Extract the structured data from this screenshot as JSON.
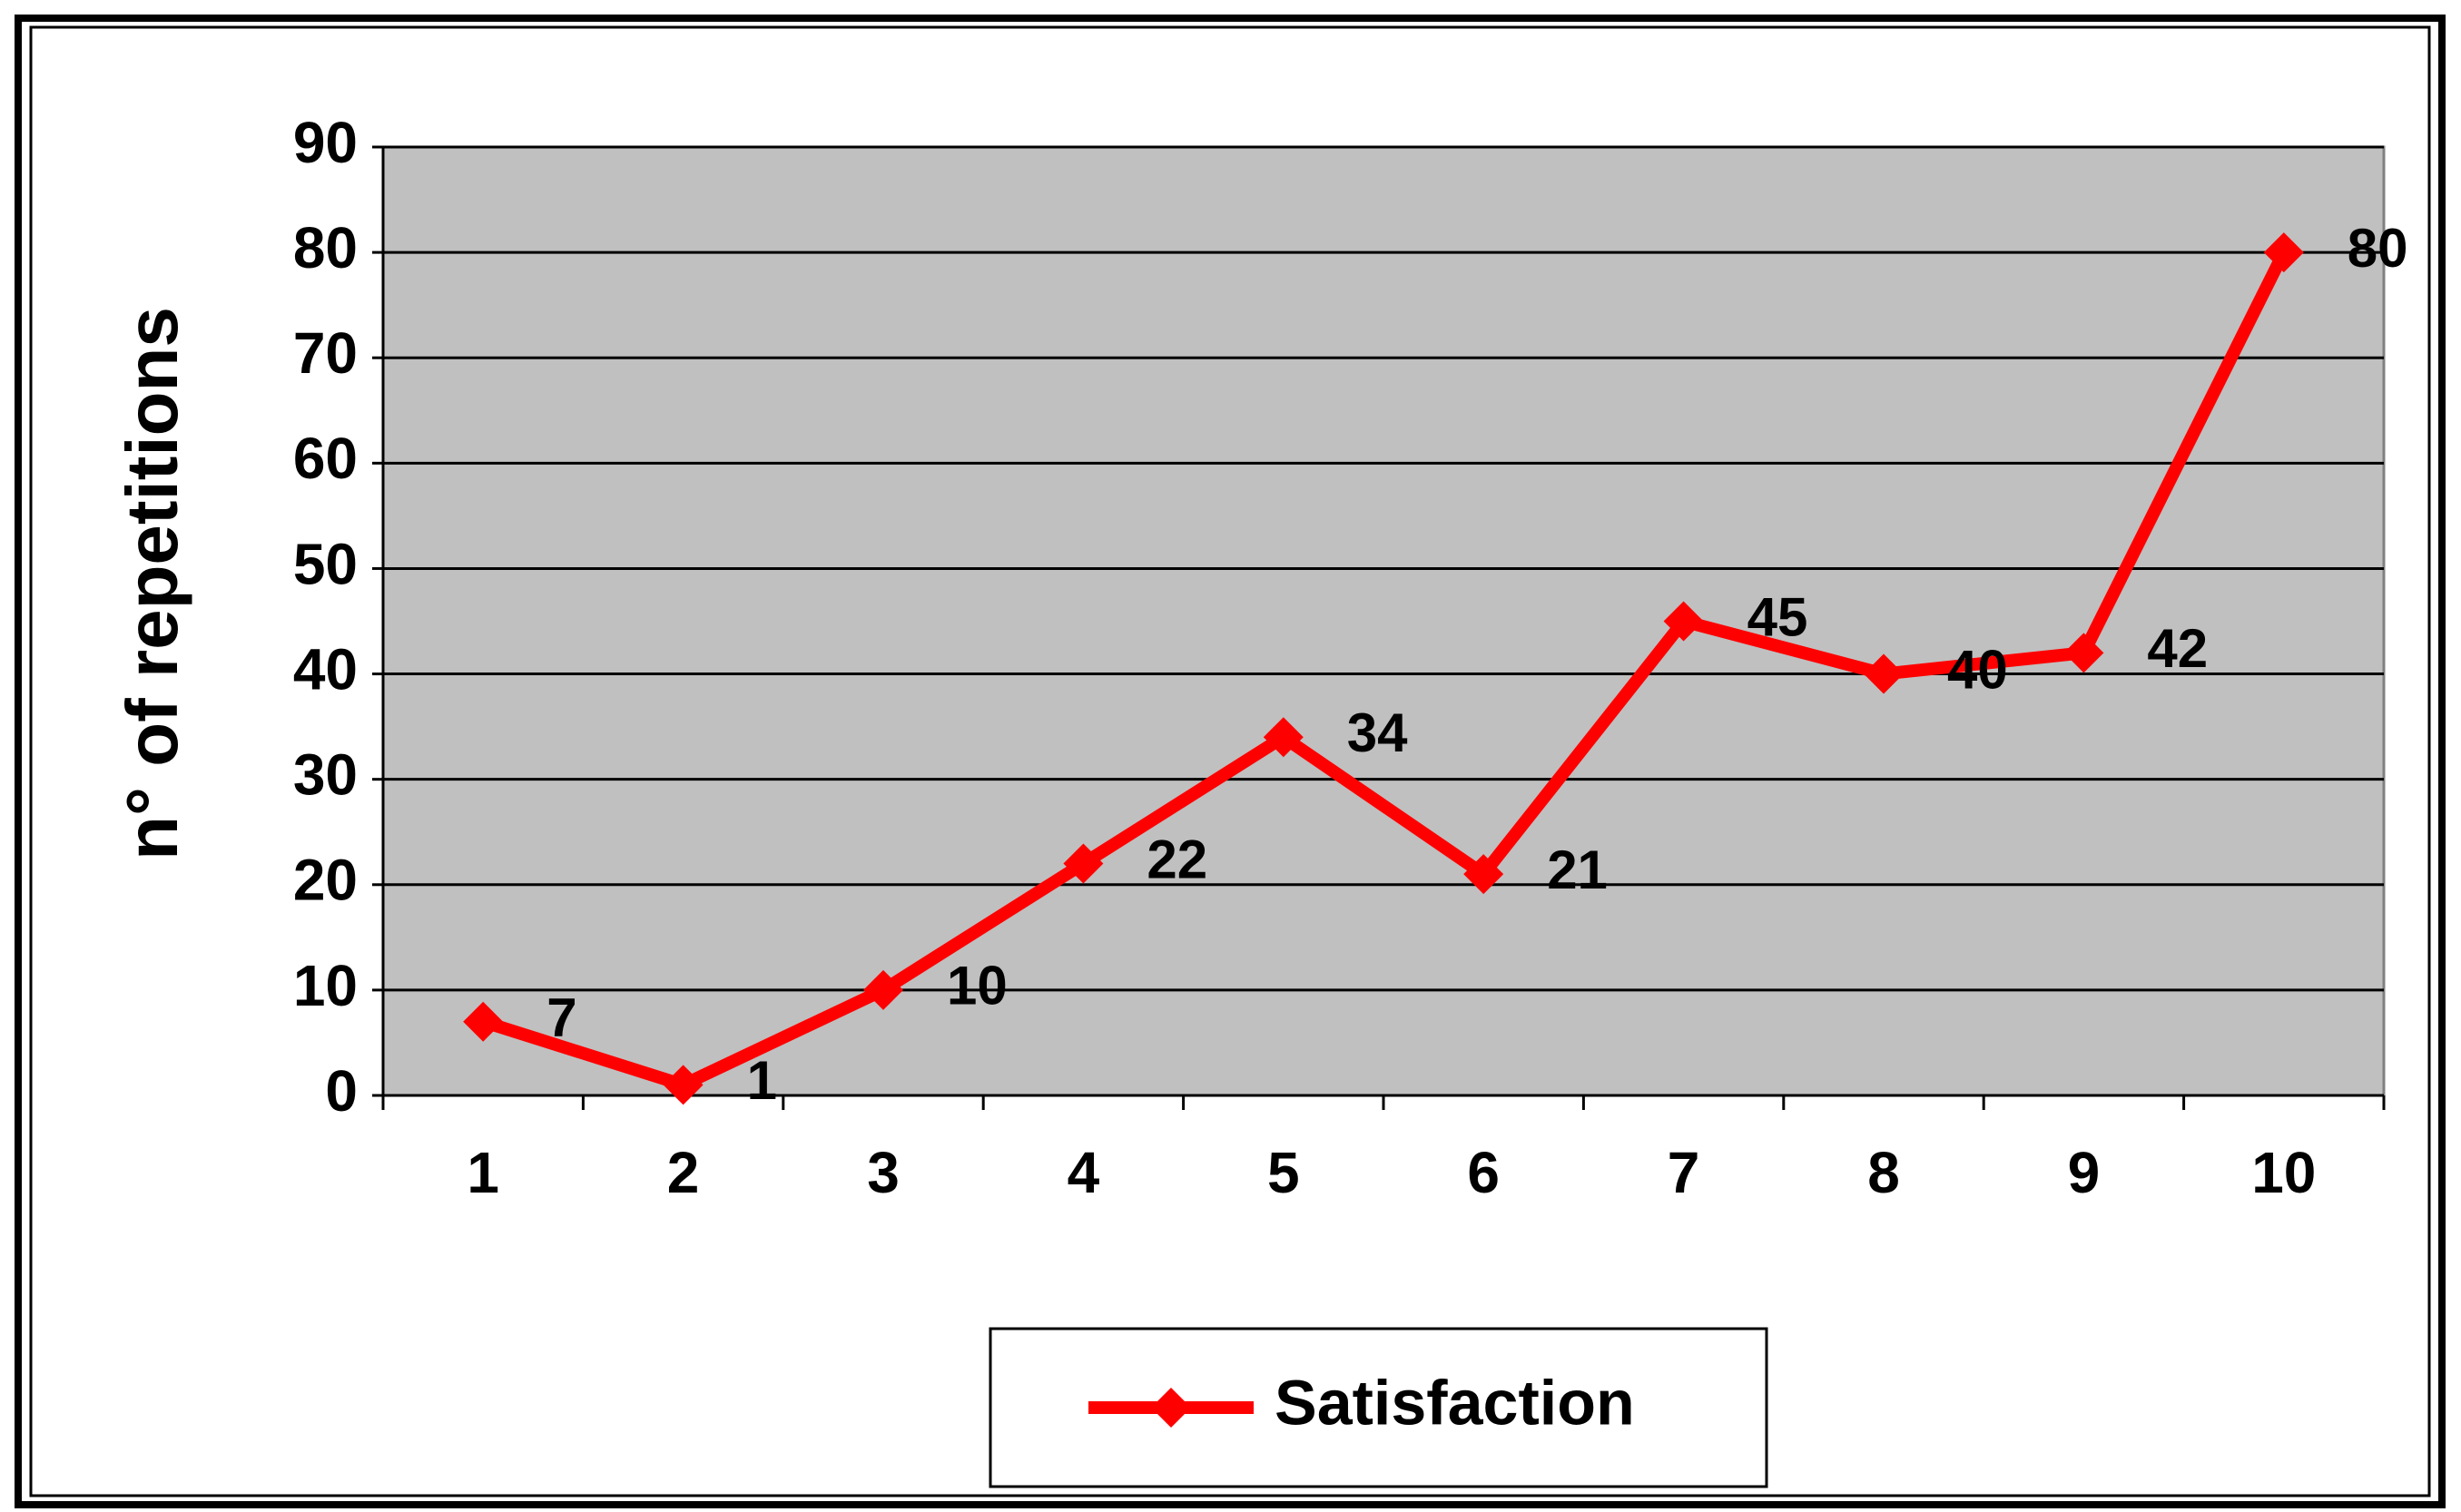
{
  "chart_data": {
    "type": "line",
    "y_label": "n° of repetitions",
    "categories": [
      "1",
      "2",
      "3",
      "4",
      "5",
      "6",
      "7",
      "8",
      "9",
      "10"
    ],
    "series": [
      {
        "name": "Satisfaction",
        "color": "#ff0000",
        "values": [
          7,
          1,
          10,
          22,
          34,
          21,
          45,
          40,
          42,
          80
        ]
      }
    ],
    "ylim": [
      0,
      90
    ],
    "yticks": [
      0,
      10,
      20,
      30,
      40,
      50,
      60,
      70,
      80,
      90
    ],
    "grid": true,
    "plot_background": "#c0c0c0",
    "legend": "bottom"
  }
}
